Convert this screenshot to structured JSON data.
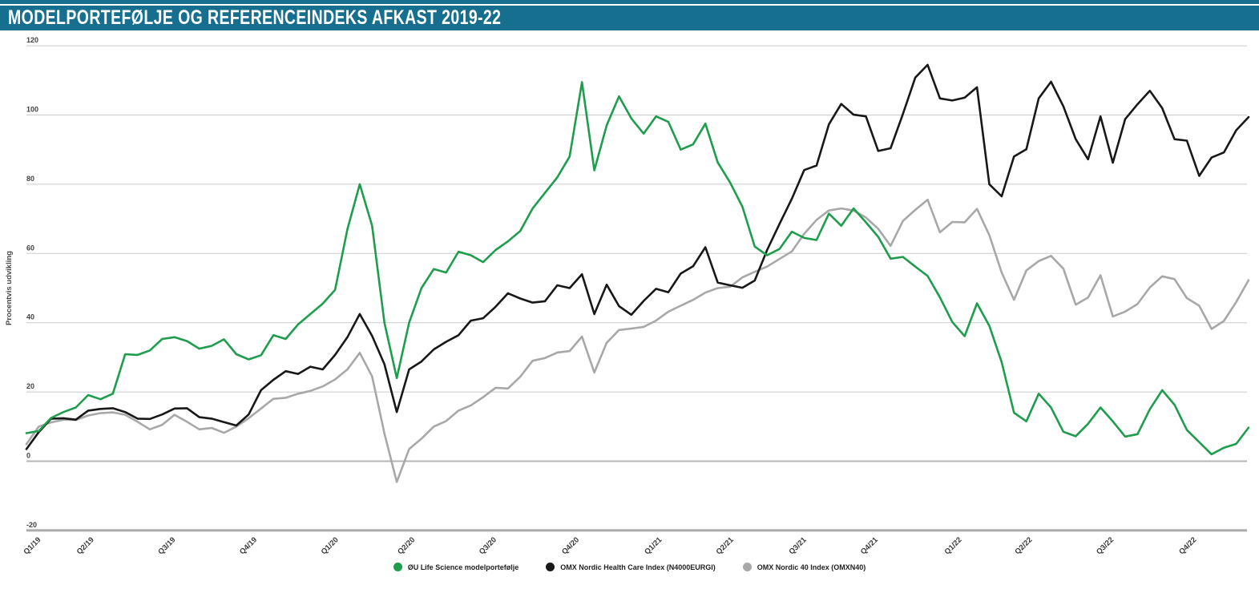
{
  "header": {
    "title": "MODELPORTEFØLJE OG REFERENCEINDEKS AFKAST 2019-22"
  },
  "colors": {
    "header_bg": "#166F8E",
    "header_text": "#FFFFFF",
    "grid": "#CBCBCB",
    "grid_zero": "#B5B5B5",
    "grid_bottom": "#ABABAB",
    "tick_text": "#424242",
    "axis_title_text": "#4A4A4A",
    "series_green": "#1E9E4D",
    "series_black": "#181818",
    "series_gray": "#A8A8A8"
  },
  "chart_data": {
    "type": "line",
    "title": "MODELPORTEFØLJE OG REFERENCEINDEKS AFKAST 2019-22",
    "xlabel": "",
    "ylabel": "Procentvis udvikling",
    "ylim": [
      -20,
      120
    ],
    "grid": true,
    "legend_position": "bottom-center",
    "x_unit": "weekly samples, Q1/2019 - Q4/2022",
    "yticks": [
      "120",
      "100",
      "80",
      "60",
      "40",
      "20",
      "0",
      "-20"
    ],
    "xticks": [
      {
        "label": "Q1/19",
        "pos": 1.0
      },
      {
        "label": "Q2/19",
        "pos": 5.3
      },
      {
        "label": "Q3/19",
        "pos": 11.9
      },
      {
        "label": "Q4/19",
        "pos": 18.5
      },
      {
        "label": "Q1/20",
        "pos": 25.1
      },
      {
        "label": "Q2/20",
        "pos": 31.3
      },
      {
        "label": "Q3/20",
        "pos": 37.9
      },
      {
        "label": "Q4/20",
        "pos": 44.6
      },
      {
        "label": "Q1/21",
        "pos": 51.3
      },
      {
        "label": "Q2/21",
        "pos": 57.1
      },
      {
        "label": "Q3/21",
        "pos": 63.0
      },
      {
        "label": "Q4/21",
        "pos": 68.8
      },
      {
        "label": "Q1/22",
        "pos": 75.6
      },
      {
        "label": "Q2/22",
        "pos": 81.3
      },
      {
        "label": "Q3/22",
        "pos": 87.9
      },
      {
        "label": "Q4/22",
        "pos": 94.6
      }
    ],
    "series": [
      {
        "name": "ØU Life Science modelportefølje",
        "color": "#1E9E4D",
        "values": [
          8.1,
          8.7,
          12.5,
          14.2,
          15.5,
          19.1,
          17.9,
          19.5,
          30.9,
          30.7,
          32.0,
          35.3,
          35.8,
          34.7,
          32.5,
          33.3,
          35.2,
          30.9,
          29.4,
          30.6,
          36.4,
          35.3,
          39.5,
          42.5,
          45.5,
          49.5,
          67.0,
          80.0,
          68.0,
          40.0,
          24.0,
          40.0,
          50.0,
          55.5,
          54.5,
          60.5,
          59.5,
          57.5,
          61.0,
          63.5,
          66.5,
          73.0,
          77.5,
          82.0,
          88.0,
          109.5,
          84.0,
          97.0,
          105.4,
          99.0,
          94.6,
          99.6,
          98.0,
          90.0,
          91.5,
          97.5,
          86.3,
          80.5,
          73.5,
          62.0,
          59.5,
          61.3,
          66.3,
          64.5,
          63.9,
          71.5,
          68.0,
          73.0,
          69.0,
          64.8,
          58.5,
          59.0,
          56.2,
          53.5,
          47.3,
          40.2,
          36.1,
          45.6,
          39.1,
          28.6,
          14.0,
          11.5,
          19.5,
          15.5,
          8.5,
          7.2,
          10.8,
          15.5,
          11.5,
          7.1,
          7.8,
          15.0,
          20.5,
          16.3,
          9.0,
          5.5,
          2.0,
          3.9,
          5.0,
          9.7
        ]
      },
      {
        "name": "OMX Nordic Health Care Index (N4000EURGI)",
        "color": "#181818",
        "values": [
          3.5,
          8.4,
          12.3,
          12.4,
          12.0,
          14.6,
          15.1,
          15.3,
          14.2,
          12.3,
          12.2,
          13.5,
          15.2,
          15.3,
          12.7,
          12.3,
          11.3,
          10.3,
          13.5,
          20.5,
          23.5,
          26.0,
          25.2,
          27.3,
          26.5,
          30.7,
          35.8,
          42.5,
          36.2,
          28.0,
          14.2,
          26.5,
          28.8,
          32.3,
          34.5,
          36.4,
          40.6,
          41.3,
          44.6,
          48.5,
          47.0,
          45.8,
          46.2,
          50.8,
          50.0,
          54.0,
          42.5,
          51.0,
          44.8,
          42.3,
          46.3,
          49.8,
          48.8,
          54.2,
          56.3,
          61.8,
          51.6,
          50.8,
          50.1,
          52.2,
          61.0,
          68.5,
          75.8,
          84.1,
          85.4,
          97.3,
          103.2,
          100.1,
          99.6,
          89.6,
          90.4,
          100.3,
          110.8,
          114.5,
          104.8,
          104.2,
          105.0,
          108.0,
          80.0,
          76.5,
          88.0,
          90.1,
          104.8,
          109.6,
          102.5,
          93.0,
          87.2,
          99.6,
          86.2,
          98.8,
          103.1,
          107.0,
          102.0,
          93.0,
          92.6,
          82.4,
          87.7,
          89.2,
          95.6,
          99.4
        ]
      },
      {
        "name": "OMX Nordic 40 Index (OMXN40)",
        "color": "#A8A8A8",
        "values": [
          4.9,
          10.0,
          11.2,
          12.0,
          11.9,
          13.2,
          13.9,
          14.1,
          13.4,
          11.4,
          9.2,
          10.5,
          13.4,
          11.4,
          9.2,
          9.6,
          8.2,
          10.0,
          12.4,
          15.2,
          18.0,
          18.3,
          19.5,
          20.3,
          21.6,
          23.6,
          26.5,
          31.3,
          24.5,
          8.0,
          -6.0,
          3.5,
          6.5,
          10.0,
          11.6,
          14.6,
          16.1,
          18.5,
          21.2,
          21.0,
          24.4,
          29.0,
          29.8,
          31.4,
          31.8,
          36.0,
          25.6,
          34.2,
          37.9,
          38.3,
          38.8,
          40.6,
          43.2,
          44.9,
          46.6,
          48.7,
          50.0,
          50.4,
          53.1,
          54.7,
          56.2,
          58.4,
          60.6,
          65.7,
          69.7,
          72.4,
          73.0,
          72.4,
          70.4,
          67.1,
          62.2,
          69.4,
          72.6,
          75.5,
          66.1,
          69.1,
          69.0,
          72.9,
          65.3,
          54.5,
          46.6,
          55.1,
          57.8,
          59.3,
          55.6,
          45.2,
          47.3,
          53.7,
          41.8,
          43.2,
          45.4,
          50.2,
          53.4,
          52.6,
          47.1,
          44.9,
          38.2,
          40.5,
          46.0,
          52.3
        ]
      }
    ]
  }
}
